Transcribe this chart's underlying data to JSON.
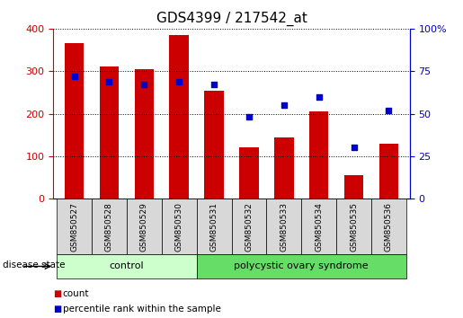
{
  "title": "GDS4399 / 217542_at",
  "samples": [
    "GSM850527",
    "GSM850528",
    "GSM850529",
    "GSM850530",
    "GSM850531",
    "GSM850532",
    "GSM850533",
    "GSM850534",
    "GSM850535",
    "GSM850536"
  ],
  "counts": [
    365,
    310,
    305,
    385,
    255,
    120,
    145,
    205,
    55,
    130
  ],
  "percentiles": [
    72,
    69,
    67,
    69,
    67,
    48,
    55,
    60,
    30,
    52
  ],
  "bar_color": "#cc0000",
  "dot_color": "#0000cc",
  "left_ylim": [
    0,
    400
  ],
  "right_ylim": [
    0,
    100
  ],
  "left_yticks": [
    0,
    100,
    200,
    300,
    400
  ],
  "right_yticks": [
    0,
    25,
    50,
    75,
    100
  ],
  "right_yticklabels": [
    "0",
    "25",
    "50",
    "75",
    "100%"
  ],
  "groups": [
    {
      "label": "control",
      "start": 0,
      "end": 3,
      "color": "#ccffcc"
    },
    {
      "label": "polycystic ovary syndrome",
      "start": 4,
      "end": 9,
      "color": "#66dd66"
    }
  ],
  "sample_box_color": "#d8d8d8",
  "disease_state_label": "disease state",
  "legend_items": [
    {
      "label": "count",
      "color": "#cc0000"
    },
    {
      "label": "percentile rank within the sample",
      "color": "#0000cc"
    }
  ],
  "left_tick_color": "#cc0000",
  "right_tick_color": "#0000cc",
  "title_fontsize": 11,
  "tick_fontsize": 8,
  "label_fontsize": 8
}
